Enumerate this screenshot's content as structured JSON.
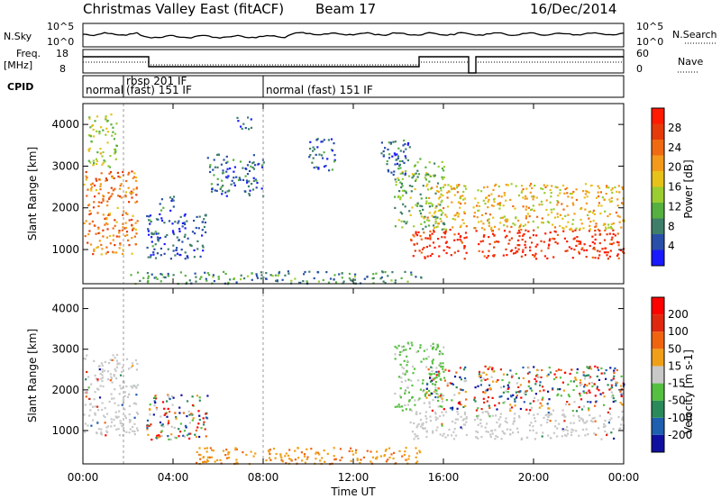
{
  "header": {
    "title": "Christmas Valley East (fitACF)",
    "beam": "Beam 17",
    "date": "16/Dec/2014"
  },
  "nsky_panel": {
    "left_label": "N.Sky",
    "left_ticks": [
      "10^5",
      "10^0"
    ],
    "right_ticks": [
      "10^5",
      "10^0"
    ],
    "right_label": "N.Search"
  },
  "freq_panel": {
    "left_label_1": "Freq.",
    "left_label_2": "[MHz]",
    "left_ticks": [
      "18",
      "8"
    ],
    "right_ticks": [
      "60",
      "0"
    ],
    "right_label": "Nave"
  },
  "cpid": {
    "label": "CPID",
    "segments": [
      {
        "start_hour": 0,
        "end_hour": 1.8,
        "line1": "",
        "line2": "normal"
      },
      {
        "start_hour": 1.8,
        "end_hour": 8.0,
        "line1": "rbsp 201 IF",
        "line2": "(fast) 151 IF"
      },
      {
        "start_hour": 8.0,
        "end_hour": 24,
        "line1": "",
        "line2": "normal (fast)  151  IF"
      }
    ]
  },
  "chart_data": [
    {
      "type": "heatmap",
      "name": "power",
      "ylabel": "Slant Range [km]",
      "y_ticks": [
        "1000",
        "2000",
        "3000",
        "4000"
      ],
      "ylim": [
        180,
        4500
      ],
      "xlim": [
        0,
        24
      ],
      "colorbar": {
        "label": "Power [dB]",
        "ticks": [
          "4",
          "8",
          "12",
          "16",
          "20",
          "24",
          "28"
        ],
        "colors": [
          "#1a1aff",
          "#2a4fa8",
          "#3f7f6a",
          "#56b040",
          "#9acd32",
          "#e6c21a",
          "#f39a1c",
          "#f06a12",
          "#e63a0a",
          "#ff1a00"
        ]
      },
      "regions": [
        {
          "t0": 0.0,
          "t1": 2.4,
          "r0": 900,
          "r1": 2900,
          "intensity": 0.75
        },
        {
          "t0": 0.2,
          "t1": 1.5,
          "r0": 3000,
          "r1": 4300,
          "intensity": 0.45
        },
        {
          "t0": 2.8,
          "t1": 5.5,
          "r0": 800,
          "r1": 1900,
          "intensity": 0.12
        },
        {
          "t0": 3.3,
          "t1": 4.0,
          "r0": 1900,
          "r1": 2300,
          "intensity": 0.18
        },
        {
          "t0": 5.5,
          "t1": 8.0,
          "r0": 2300,
          "r1": 3300,
          "intensity": 0.15
        },
        {
          "t0": 6.8,
          "t1": 7.6,
          "r0": 3900,
          "r1": 4200,
          "intensity": 0.1
        },
        {
          "t0": 10.0,
          "t1": 11.2,
          "r0": 2900,
          "r1": 3700,
          "intensity": 0.15
        },
        {
          "t0": 13.2,
          "t1": 14.5,
          "r0": 2800,
          "r1": 3700,
          "intensity": 0.15
        },
        {
          "t0": 13.8,
          "t1": 16.0,
          "r0": 1500,
          "r1": 3200,
          "intensity": 0.35
        },
        {
          "t0": 14.5,
          "t1": 24.0,
          "r0": 800,
          "r1": 1500,
          "intensity": 0.95
        },
        {
          "t0": 15.2,
          "t1": 24.0,
          "r0": 1500,
          "r1": 2600,
          "intensity": 0.6
        },
        {
          "t0": 2.0,
          "t1": 15.0,
          "r0": 200,
          "r1": 500,
          "intensity": 0.25
        }
      ]
    },
    {
      "type": "heatmap",
      "name": "velocity",
      "ylabel": "Slant Range [km]",
      "y_ticks": [
        "1000",
        "2000",
        "3000",
        "4000"
      ],
      "ylim": [
        180,
        4500
      ],
      "xlim": [
        0,
        24
      ],
      "x_ticks": [
        "00:00",
        "04:00",
        "08:00",
        "12:00",
        "16:00",
        "20:00",
        "00:00"
      ],
      "xlabel": "Time UT",
      "colorbar": {
        "label": "Velocity [m s-1]",
        "ticks": [
          "200",
          "100",
          "50",
          "15",
          "-15",
          "-50",
          "-100",
          "-200"
        ],
        "colors": [
          "#1010a0",
          "#1f5fb0",
          "#2a8a5a",
          "#55c040",
          "#c8c8c8",
          "#f0a018",
          "#f06410",
          "#e02810",
          "#ff0000"
        ]
      },
      "regions": [
        {
          "t0": 0.0,
          "t1": 2.4,
          "r0": 900,
          "r1": 2900,
          "vclass": "gray"
        },
        {
          "t0": 2.8,
          "t1": 5.5,
          "r0": 800,
          "r1": 1900,
          "vclass": "mixed"
        },
        {
          "t0": 13.8,
          "t1": 16.0,
          "r0": 1500,
          "r1": 3200,
          "vclass": "green"
        },
        {
          "t0": 14.5,
          "t1": 24.0,
          "r0": 800,
          "r1": 1500,
          "vclass": "gray"
        },
        {
          "t0": 15.2,
          "t1": 24.0,
          "r0": 1500,
          "r1": 2600,
          "vclass": "mixed"
        },
        {
          "t0": 5.0,
          "t1": 15.0,
          "r0": 200,
          "r1": 600,
          "vclass": "orange"
        }
      ]
    }
  ]
}
